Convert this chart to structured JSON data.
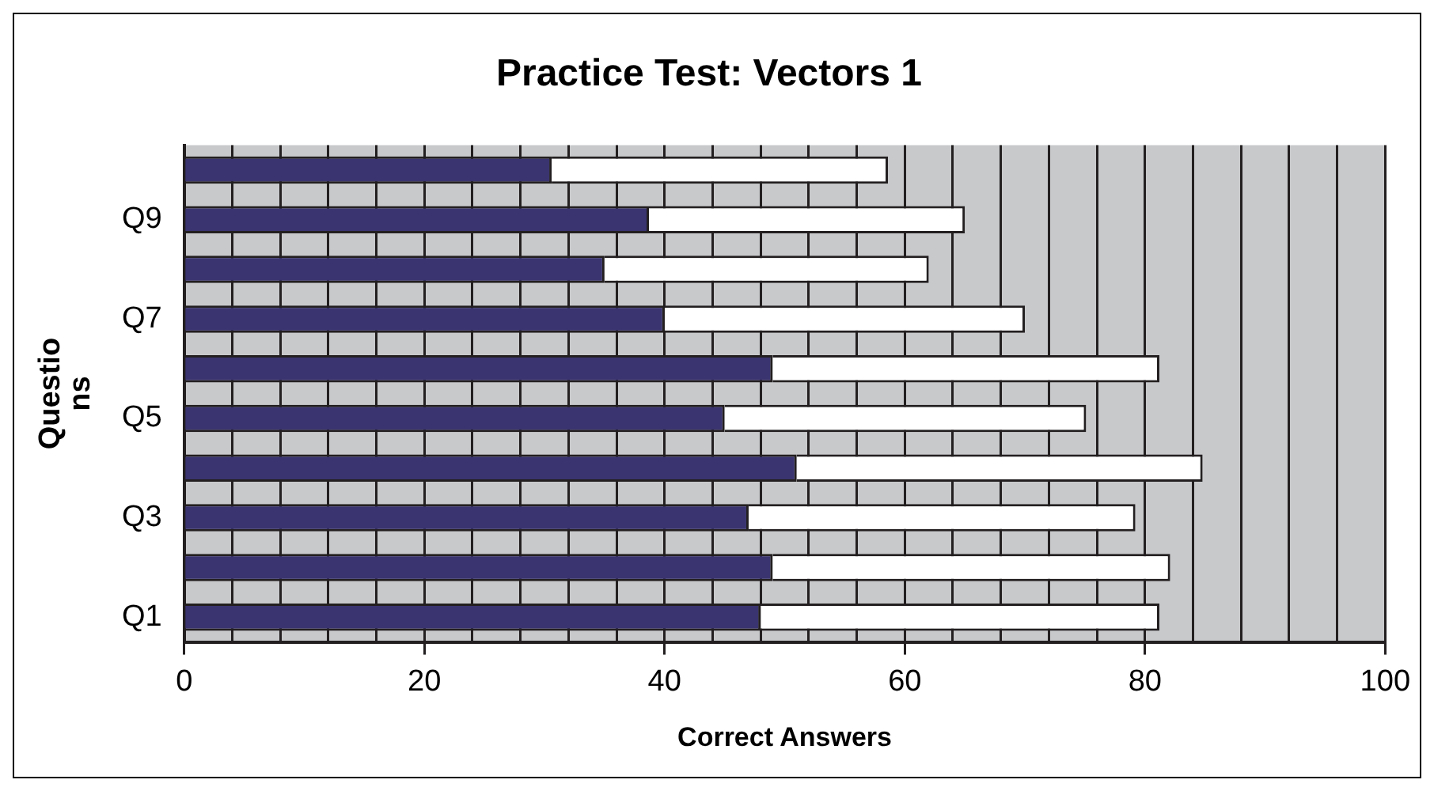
{
  "chart_data": {
    "type": "bar",
    "orientation": "horizontal",
    "stacked": true,
    "title": "Practice Test: Vectors 1",
    "xlabel": "Correct Answers",
    "ylabel": "Questio\nns",
    "categories": [
      null,
      "Q9",
      null,
      "Q7",
      null,
      "Q5",
      null,
      "Q3",
      null,
      "Q1"
    ],
    "series": [
      {
        "color": "#3a3470",
        "values": [
          30.6,
          38.7,
          35,
          40,
          49,
          45,
          51,
          47,
          49,
          48
        ]
      },
      {
        "color": "#ffffff",
        "values": [
          28,
          26.3,
          27,
          30,
          32.2,
          30.1,
          33.8,
          32.2,
          33.1,
          33.2
        ]
      }
    ],
    "xlim": [
      0,
      100
    ],
    "xticks": [
      0,
      {
        "value": 4,
        "label": null
      },
      {
        "value": 8,
        "label": null
      },
      {
        "value": 12,
        "label": null
      },
      {
        "value": 16,
        "label": null
      },
      20,
      {
        "value": 24,
        "label": null
      },
      {
        "value": 28,
        "label": null
      },
      {
        "value": 32,
        "label": null
      },
      {
        "value": 36,
        "label": null
      },
      40,
      {
        "value": 44,
        "label": null
      },
      {
        "value": 48,
        "label": null
      },
      {
        "value": 52,
        "label": null
      },
      {
        "value": 56,
        "label": null
      },
      60,
      {
        "value": 64,
        "label": null
      },
      {
        "value": 68,
        "label": null
      },
      {
        "value": 72,
        "label": null
      },
      {
        "value": 76,
        "label": null
      },
      80,
      {
        "value": 84,
        "label": null
      },
      {
        "value": 88,
        "label": null
      },
      {
        "value": 92,
        "label": null
      },
      {
        "value": 96,
        "label": null
      },
      100
    ],
    "grid": "x",
    "legend": false
  }
}
